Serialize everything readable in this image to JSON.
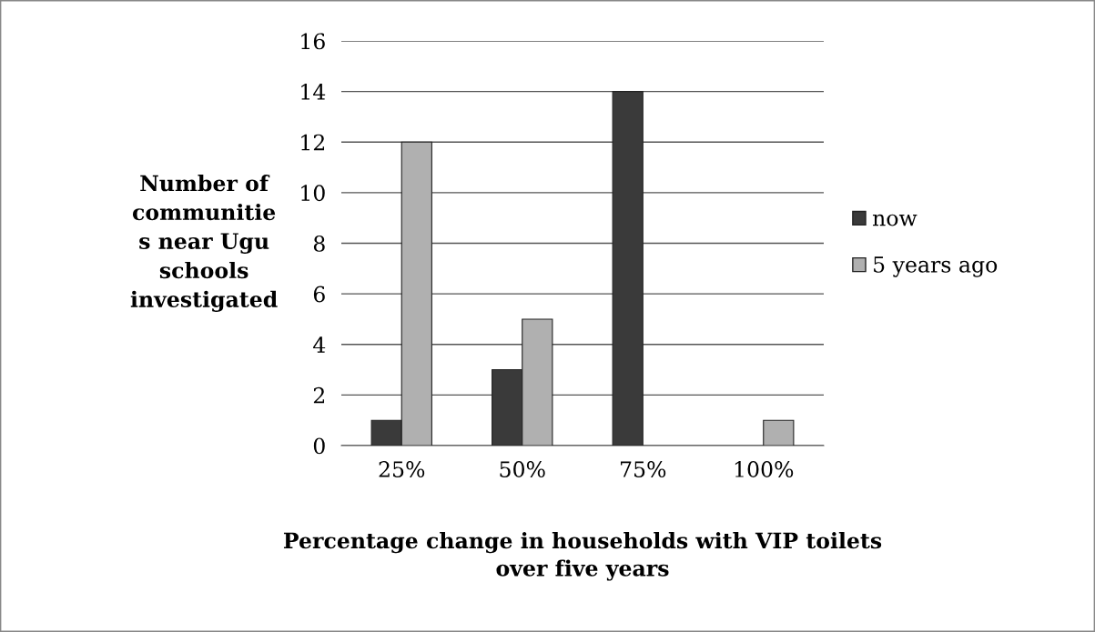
{
  "chart_data": {
    "type": "bar",
    "categories": [
      "25%",
      "50%",
      "75%",
      "100%"
    ],
    "series": [
      {
        "name": "now",
        "color": "#3a3a3a",
        "values": [
          1,
          3,
          14,
          0
        ]
      },
      {
        "name": "5 years ago",
        "color": "#b0b0b0",
        "values": [
          12,
          5,
          0,
          1
        ]
      }
    ],
    "ylabel": "Number of\ncommunitie\ns near Ugu\nschools\ninvestigated",
    "xlabel": "Percentage change in households with VIP toilets\nover five years",
    "ylim": [
      0,
      16
    ],
    "yticks": [
      0,
      2,
      4,
      6,
      8,
      10,
      12,
      14,
      16
    ],
    "grid": "y",
    "legend": "right"
  }
}
